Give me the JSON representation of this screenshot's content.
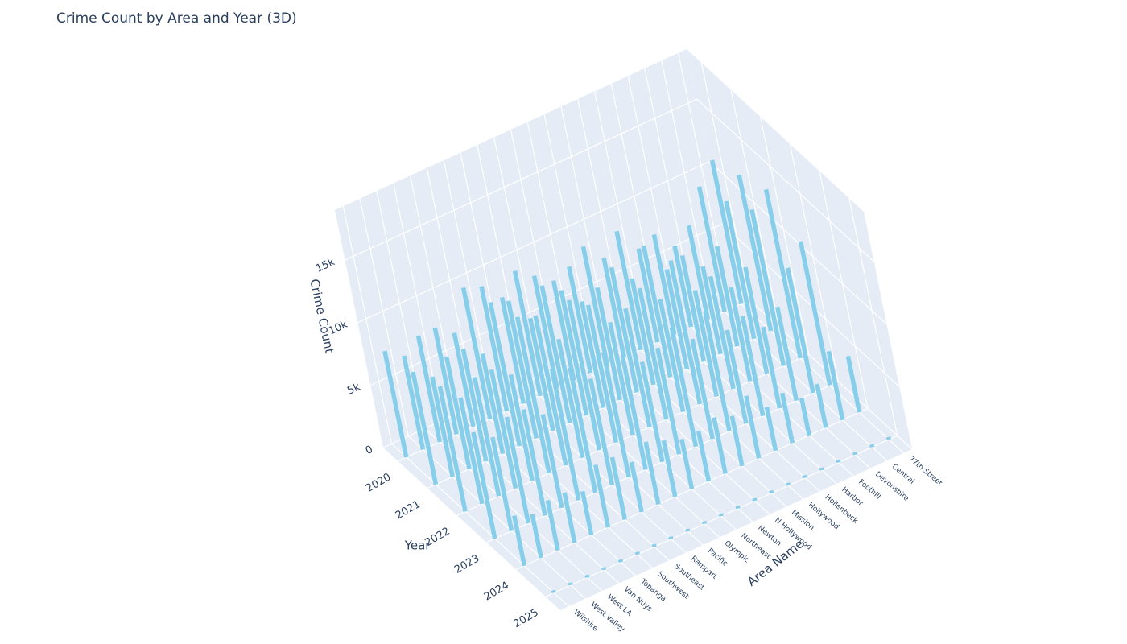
{
  "chart_data": {
    "type": "bar3d",
    "title": "Crime Count by Area and Year (3D)",
    "xlabel": "Year",
    "ylabel": "Area Name",
    "zlabel": "Crime Count",
    "x_categories": [
      "2020",
      "2021",
      "2022",
      "2023",
      "2024",
      "2025"
    ],
    "y_categories": [
      "77th Street",
      "Central",
      "Devonshire",
      "Foothill",
      "Harbor",
      "Hollenbeck",
      "Hollywood",
      "Mission",
      "N Hollywood",
      "Newton",
      "Northeast",
      "Olympic",
      "Pacific",
      "Rampart",
      "Southeast",
      "Southwest",
      "Topanga",
      "Van Nuys",
      "West LA",
      "West Valley",
      "Wilshire"
    ],
    "z_ticks": [
      0,
      5000,
      10000,
      15000
    ],
    "z_tick_labels": [
      "0",
      "5k",
      "10k",
      "15k"
    ],
    "zlim": [
      0,
      19000
    ],
    "bar_color": "#87CEEB",
    "values": {
      "77th Street": [
        11500,
        12500,
        13500,
        11500,
        4500,
        200
      ],
      "Central": [
        10000,
        11000,
        12500,
        10000,
        5500,
        200
      ],
      "Devonshire": [
        7500,
        8000,
        8500,
        7500,
        3500,
        200
      ],
      "Foothill": [
        6500,
        7000,
        7500,
        6500,
        3000,
        200
      ],
      "Harbor": [
        8000,
        8500,
        9000,
        8000,
        4000,
        200
      ],
      "Hollenbeck": [
        7500,
        8000,
        8500,
        7500,
        3500,
        200
      ],
      "Hollywood": [
        9500,
        10500,
        11500,
        9500,
        5000,
        200
      ],
      "Mission": [
        8000,
        8500,
        9000,
        8000,
        4000,
        200
      ],
      "N Hollywood": [
        9500,
        10000,
        10500,
        9500,
        4500,
        200
      ],
      "Newton": [
        8500,
        9000,
        9500,
        8500,
        4000,
        200
      ],
      "Northeast": [
        8000,
        8500,
        9000,
        8000,
        4000,
        200
      ],
      "Olympic": [
        9000,
        10000,
        11000,
        9000,
        4500,
        200
      ],
      "Pacific": [
        10000,
        11000,
        12000,
        10000,
        5000,
        200
      ],
      "Rampart": [
        8500,
        9000,
        9500,
        8500,
        4000,
        200
      ],
      "Southeast": [
        10000,
        11000,
        12000,
        10000,
        5000,
        200
      ],
      "Southwest": [
        10500,
        11500,
        12500,
        10500,
        5000,
        200
      ],
      "Topanga": [
        7500,
        8000,
        8500,
        7500,
        3500,
        200
      ],
      "Van Nuys": [
        8500,
        9000,
        9500,
        8500,
        4000,
        200
      ],
      "West LA": [
        8500,
        9000,
        9500,
        8500,
        4000,
        200
      ],
      "West Valley": [
        7500,
        8000,
        8500,
        7500,
        3500,
        200
      ],
      "Wilshire": [
        8500,
        9000,
        10000,
        8500,
        4000,
        200
      ]
    }
  }
}
